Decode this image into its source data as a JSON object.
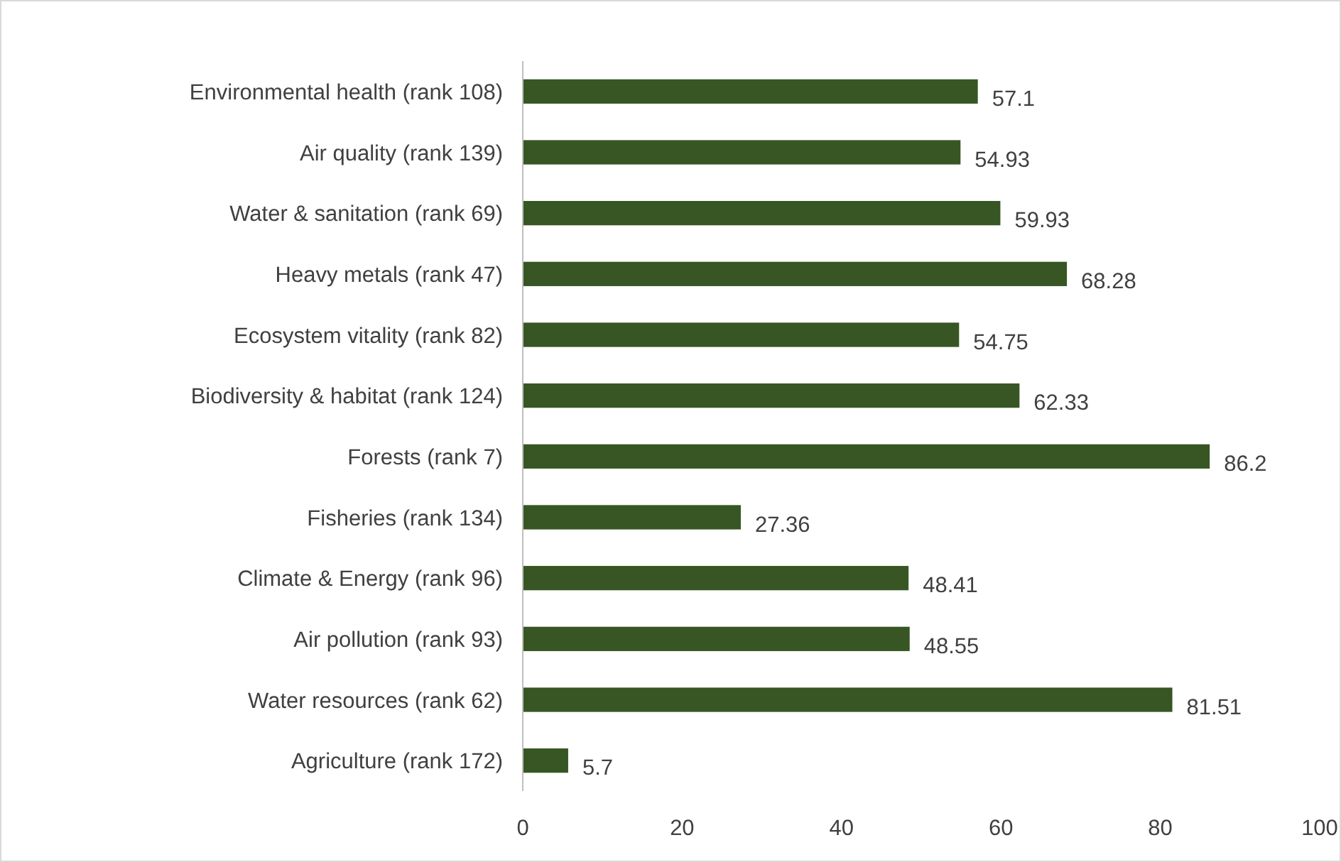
{
  "chart_data": {
    "type": "bar",
    "orientation": "horizontal",
    "categories": [
      "Environmental health (rank 108)",
      "Air quality (rank 139)",
      "Water & sanitation (rank 69)",
      "Heavy metals (rank 47)",
      "Ecosystem vitality (rank 82)",
      "Biodiversity & habitat (rank 124)",
      "Forests (rank 7)",
      "Fisheries (rank 134)",
      "Climate & Energy (rank 96)",
      "Air pollution (rank 93)",
      "Water resources (rank 62)",
      "Agriculture (rank 172)"
    ],
    "values": [
      57.1,
      54.93,
      59.93,
      68.28,
      54.75,
      62.33,
      86.2,
      27.36,
      48.41,
      48.55,
      81.51,
      5.7
    ],
    "color": "#375623",
    "xlim": [
      0,
      100
    ],
    "xticks": [
      0,
      20,
      40,
      60,
      80,
      100
    ],
    "data_labels": true,
    "grid": false
  }
}
